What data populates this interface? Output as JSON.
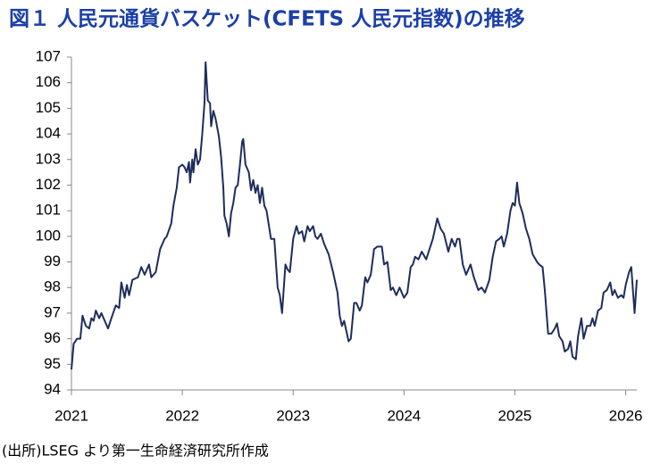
{
  "chart_data": {
    "type": "line",
    "title": "図１ 人民元通貨バスケット(CFETS 人民元指数)の推移",
    "source": "(出所)LSEG より第一生命経済研究所作成",
    "color": "#1f2d5c",
    "x": [
      2021.0,
      2021.02,
      2021.05,
      2021.08,
      2021.1,
      2021.13,
      2021.16,
      2021.18,
      2021.2,
      2021.22,
      2021.25,
      2021.27,
      2021.3,
      2021.33,
      2021.36,
      2021.4,
      2021.43,
      2021.45,
      2021.48,
      2021.5,
      2021.52,
      2021.55,
      2021.6,
      2021.63,
      2021.66,
      2021.7,
      2021.72,
      2021.76,
      2021.8,
      2021.84,
      2021.86,
      2021.9,
      2021.92,
      2021.95,
      2021.97,
      2022.0,
      2022.02,
      2022.04,
      2022.06,
      2022.07,
      2022.09,
      2022.1,
      2022.12,
      2022.14,
      2022.16,
      2022.18,
      2022.2,
      2022.21,
      2022.23,
      2022.25,
      2022.26,
      2022.28,
      2022.3,
      2022.33,
      2022.35,
      2022.37,
      2022.38,
      2022.4,
      2022.42,
      2022.44,
      2022.46,
      2022.48,
      2022.5,
      2022.52,
      2022.54,
      2022.55,
      2022.57,
      2022.6,
      2022.62,
      2022.64,
      2022.66,
      2022.68,
      2022.7,
      2022.72,
      2022.74,
      2022.76,
      2022.8,
      2022.83,
      2022.86,
      2022.88,
      2022.9,
      2022.93,
      2022.95,
      2022.97,
      2023.0,
      2023.03,
      2023.05,
      2023.08,
      2023.1,
      2023.13,
      2023.15,
      2023.18,
      2023.2,
      2023.22,
      2023.25,
      2023.28,
      2023.32,
      2023.36,
      2023.4,
      2023.42,
      2023.44,
      2023.46,
      2023.48,
      2023.5,
      2023.52,
      2023.55,
      2023.57,
      2023.6,
      2023.62,
      2023.65,
      2023.67,
      2023.7,
      2023.73,
      2023.76,
      2023.8,
      2023.82,
      2023.85,
      2023.88,
      2023.9,
      2023.93,
      2023.96,
      2024.0,
      2024.03,
      2024.06,
      2024.08,
      2024.1,
      2024.13,
      2024.16,
      2024.2,
      2024.23,
      2024.26,
      2024.3,
      2024.33,
      2024.36,
      2024.4,
      2024.43,
      2024.46,
      2024.48,
      2024.5,
      2024.53,
      2024.56,
      2024.6,
      2024.63,
      2024.67,
      2024.7,
      2024.73,
      2024.77,
      2024.8,
      2024.83,
      2024.86,
      2024.88,
      2024.9,
      2024.93,
      2024.96,
      2024.98,
      2025.0,
      2025.02,
      2025.04,
      2025.07,
      2025.1,
      2025.13,
      2025.16,
      2025.2,
      2025.22,
      2025.25,
      2025.27,
      2025.3,
      2025.33,
      2025.36,
      2025.38,
      2025.4,
      2025.43,
      2025.45,
      2025.48,
      2025.5,
      2025.52,
      2025.55,
      2025.57,
      2025.6,
      2025.62,
      2025.65,
      2025.68,
      2025.7,
      2025.72,
      2025.75,
      2025.78,
      2025.8,
      2025.83,
      2025.86,
      2025.88,
      2025.9,
      2025.93,
      2025.96,
      2025.98,
      2026.0,
      2026.03,
      2026.05,
      2026.08,
      2026.1
    ],
    "values": [
      94.8,
      95.8,
      96.0,
      96.0,
      96.9,
      96.5,
      96.4,
      96.8,
      96.7,
      97.1,
      96.8,
      97.0,
      96.7,
      96.4,
      96.8,
      97.3,
      97.2,
      98.2,
      97.6,
      98.1,
      97.7,
      98.3,
      98.4,
      98.8,
      98.5,
      98.9,
      98.4,
      98.6,
      99.5,
      99.9,
      100.0,
      100.5,
      101.2,
      101.9,
      102.7,
      102.8,
      102.7,
      102.5,
      102.9,
      102.1,
      103.0,
      102.5,
      103.4,
      102.8,
      103.0,
      104.0,
      105.2,
      106.8,
      105.3,
      105.2,
      104.3,
      104.9,
      104.6,
      103.9,
      103.1,
      101.9,
      100.8,
      100.5,
      100.0,
      100.9,
      101.3,
      101.9,
      102.0,
      102.8,
      103.7,
      103.8,
      102.8,
      102.5,
      101.8,
      102.2,
      101.7,
      102.0,
      101.3,
      101.9,
      101.2,
      101.0,
      99.9,
      99.9,
      98.0,
      97.7,
      97.0,
      98.9,
      98.7,
      98.6,
      99.9,
      100.4,
      100.1,
      100.2,
      99.8,
      100.4,
      100.2,
      100.4,
      100.0,
      99.9,
      100.1,
      99.7,
      99.3,
      98.6,
      97.8,
      96.9,
      96.5,
      96.7,
      96.3,
      95.9,
      96.0,
      97.4,
      97.4,
      97.1,
      97.3,
      98.4,
      98.2,
      98.5,
      99.5,
      99.6,
      99.6,
      98.9,
      99.0,
      97.9,
      98.0,
      97.7,
      98.0,
      97.6,
      97.8,
      98.8,
      98.9,
      99.2,
      99.1,
      99.4,
      99.1,
      99.5,
      99.9,
      100.7,
      100.3,
      100.1,
      99.4,
      99.9,
      99.6,
      99.9,
      99.9,
      98.9,
      98.5,
      98.9,
      98.4,
      97.9,
      98.0,
      97.8,
      98.3,
      99.2,
      99.8,
      99.9,
      100.0,
      99.6,
      100.1,
      101.0,
      101.3,
      101.2,
      102.1,
      101.3,
      100.9,
      100.3,
      99.9,
      99.3,
      99.0,
      98.9,
      98.8,
      97.9,
      96.2,
      96.2,
      96.4,
      96.6,
      96.1,
      95.9,
      95.5,
      95.6,
      95.9,
      95.3,
      95.2,
      96.1,
      96.8,
      96.0,
      96.5,
      96.5,
      96.8,
      96.5,
      97.1,
      97.2,
      97.8,
      97.9,
      98.2,
      97.7,
      97.9,
      97.6,
      97.7,
      97.6,
      98.1,
      98.6,
      98.8,
      97.0,
      98.3
    ],
    "xlim": [
      2021,
      2026.1
    ],
    "xticks": [
      2021,
      2022,
      2023,
      2024,
      2025,
      2026
    ],
    "ylim": [
      94,
      107
    ],
    "yticks": [
      94,
      95,
      96,
      97,
      98,
      99,
      100,
      101,
      102,
      103,
      104,
      105,
      106,
      107
    ],
    "grid": false
  }
}
